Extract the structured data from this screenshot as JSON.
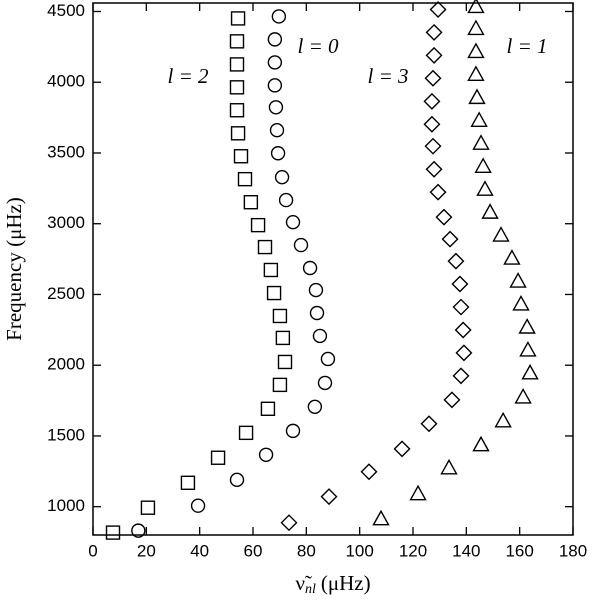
{
  "chart_data": {
    "type": "scatter",
    "x_label_symbol": "ν̃",
    "x_label_subscript": "nl",
    "x_label_unit": "(μHz)",
    "y_label": "Frequency (μHz)",
    "xlim": [
      0,
      180
    ],
    "xticks": [
      0,
      20,
      40,
      60,
      80,
      100,
      120,
      140,
      160,
      180
    ],
    "ylim": [
      800,
      4560
    ],
    "yticks": [
      1000,
      1500,
      2000,
      2500,
      3000,
      3500,
      4000,
      4500
    ],
    "series": [
      {
        "name": "l = 2",
        "marker": "square",
        "color": "#000000",
        "x": [
          7.5,
          20.6,
          35.6,
          46.9,
          57.4,
          65.6,
          70.1,
          72,
          71.2,
          70.1,
          67.9,
          66.7,
          64.5,
          61.9,
          59.2,
          57,
          55.5,
          54.4,
          54,
          54,
          54,
          54,
          54.4
        ],
        "y": [
          817,
          993,
          1169,
          1346,
          1522,
          1692,
          1861,
          2023,
          2193,
          2348,
          2510,
          2673,
          2835,
          2990,
          3152,
          3315,
          3477,
          3639,
          3802,
          3964,
          4126,
          4289,
          4451
        ]
      },
      {
        "name": "l = 0",
        "marker": "circle",
        "color": "#000000",
        "x": [
          17,
          39.4,
          54,
          64.9,
          75,
          83.2,
          87,
          88.1,
          85.1,
          84,
          83.6,
          81.4,
          78,
          75,
          72.4,
          70.9,
          69.4,
          69,
          68.6,
          68.2,
          68.2,
          68.2,
          69.7
        ],
        "y": [
          831,
          1007,
          1190,
          1367,
          1536,
          1706,
          1875,
          2044,
          2207,
          2369,
          2531,
          2687,
          2849,
          3011,
          3167,
          3329,
          3498,
          3661,
          3823,
          3978,
          4140,
          4303,
          4465
        ]
      },
      {
        "name": "l = 3",
        "marker": "diamond",
        "color": "#000000",
        "x": [
          73.5,
          88.5,
          103.5,
          115.9,
          126,
          134.6,
          138,
          139.1,
          138.8,
          138,
          137.6,
          136.1,
          133.9,
          131.6,
          129.4,
          127.9,
          127.5,
          127.1,
          127.1,
          127.5,
          127.9,
          127.9,
          129.4
        ],
        "y": [
          887,
          1071,
          1247,
          1409,
          1586,
          1755,
          1925,
          2087,
          2249,
          2411,
          2574,
          2736,
          2891,
          3047,
          3223,
          3385,
          3548,
          3703,
          3865,
          4028,
          4190,
          4352,
          4514
        ]
      },
      {
        "name": "l = 1",
        "marker": "triangle",
        "color": "#000000",
        "x": [
          108,
          121.9,
          133.5,
          145.5,
          153.8,
          161.3,
          163.9,
          163.1,
          162.8,
          160.5,
          159.4,
          157.1,
          153,
          148.9,
          147,
          146.3,
          145.5,
          144.8,
          144,
          143.6,
          143.6,
          143.6,
          143.6
        ],
        "y": [
          915,
          1092,
          1275,
          1438,
          1607,
          1776,
          1946,
          2108,
          2270,
          2433,
          2595,
          2757,
          2920,
          3082,
          3244,
          3406,
          3569,
          3731,
          3893,
          4056,
          4218,
          4380,
          4536
        ]
      }
    ]
  }
}
